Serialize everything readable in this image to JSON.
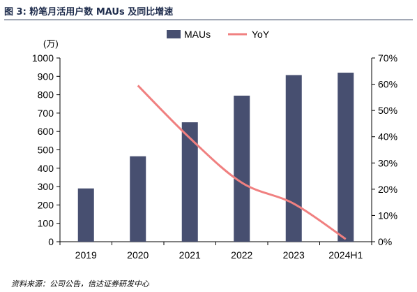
{
  "figure": {
    "title": "图 3: 粉笔月活用户数 MAUs 及同比增速",
    "source": "资料来源：公司公告，信达证券研发中心"
  },
  "colors": {
    "bar": "#474f70",
    "line": "#f08080",
    "accent": "#1f2d4d"
  },
  "chart_data": {
    "type": "bar",
    "categories": [
      "2019",
      "2020",
      "2021",
      "2022",
      "2023",
      "2024H1"
    ],
    "series": [
      {
        "name": "MAUs",
        "type": "bar",
        "axis": "left",
        "values": [
          290,
          465,
          650,
          795,
          907,
          920
        ]
      },
      {
        "name": "YoY",
        "type": "line",
        "axis": "right",
        "values": [
          null,
          0.595,
          0.395,
          0.225,
          0.145,
          0.01
        ]
      }
    ],
    "ylabel": "(万)",
    "ylim": [
      0,
      1000
    ],
    "yticks": [
      0,
      100,
      200,
      300,
      400,
      500,
      600,
      700,
      800,
      900,
      1000
    ],
    "y2lim": [
      0,
      0.7
    ],
    "y2ticks": [
      "0%",
      "10%",
      "20%",
      "30%",
      "40%",
      "50%",
      "60%",
      "70%"
    ],
    "legend": "top",
    "grid": false
  }
}
